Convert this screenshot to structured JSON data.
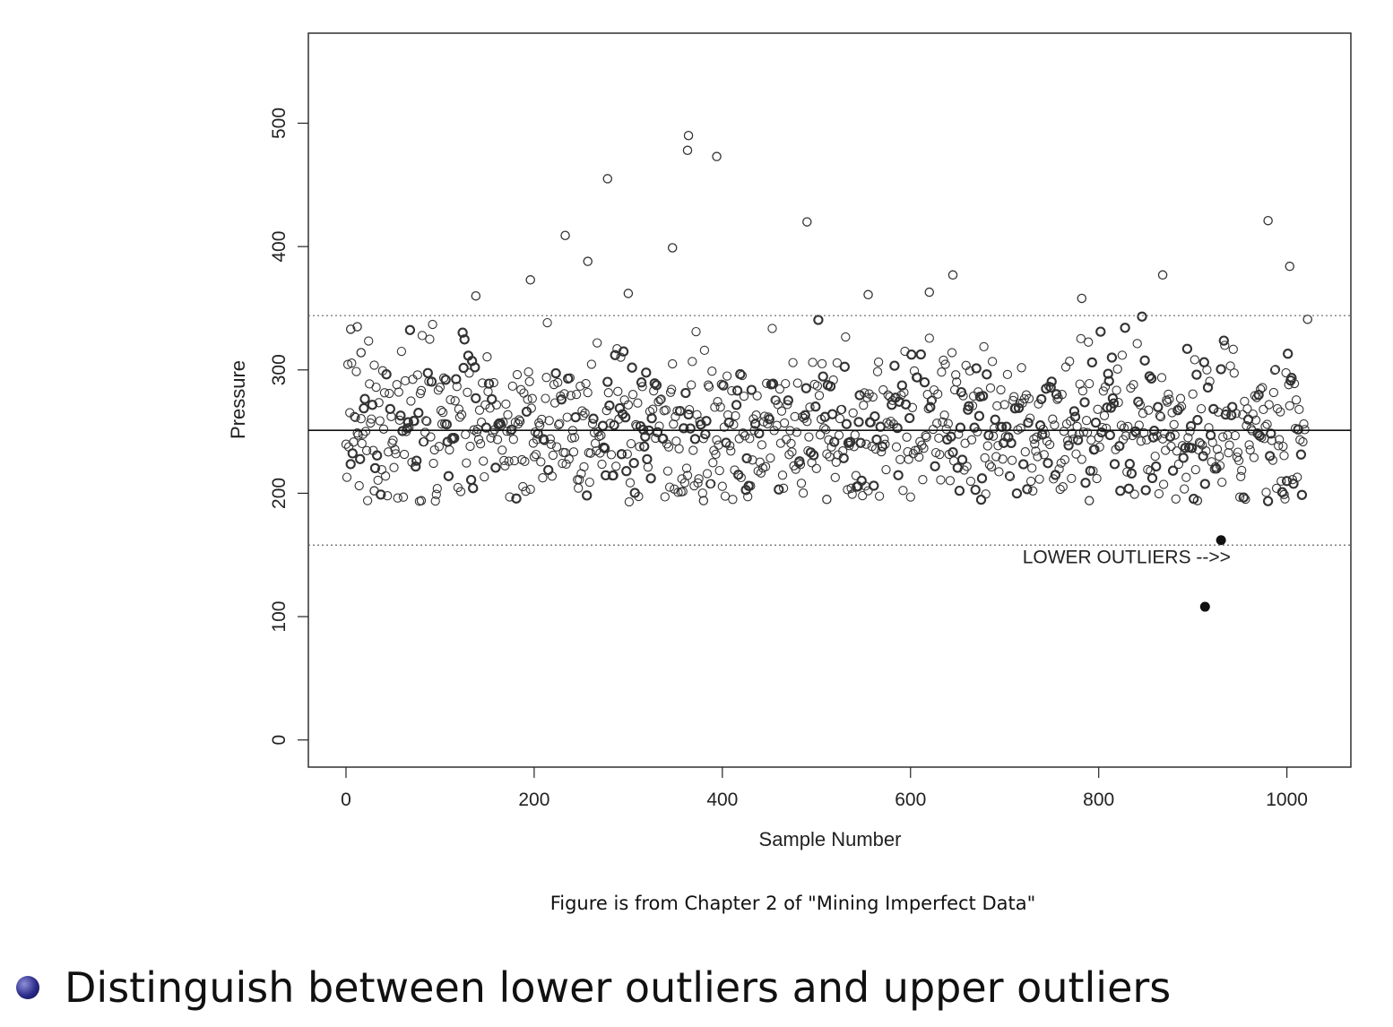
{
  "chart_data": {
    "type": "scatter",
    "xlabel": "Sample Number",
    "ylabel": "Pressure",
    "xlim": [
      -40,
      1068
    ],
    "ylim": [
      -22,
      573
    ],
    "x_ticks": [
      0,
      200,
      400,
      600,
      800,
      1000
    ],
    "y_ticks": [
      0,
      100,
      200,
      300,
      400,
      500
    ],
    "grid": false,
    "reference_lines": [
      {
        "style": "solid",
        "y": 251
      },
      {
        "style": "dotted",
        "y": 344
      },
      {
        "style": "dotted",
        "y": 158
      }
    ],
    "annotation": {
      "text": "LOWER OUTLIERS -->>",
      "x": 700,
      "y": 139
    },
    "outliers_filled": [
      {
        "x": 913,
        "y": 108
      },
      {
        "x": 930,
        "y": 162
      }
    ],
    "series_points_count": 1020,
    "series_mean": 251,
    "series_sd": 33,
    "highlighted_points": [
      {
        "x": 5,
        "y": 333
      },
      {
        "x": 12,
        "y": 335
      },
      {
        "x": 16,
        "y": 314
      },
      {
        "x": 138,
        "y": 360
      },
      {
        "x": 196,
        "y": 373
      },
      {
        "x": 233,
        "y": 409
      },
      {
        "x": 257,
        "y": 388
      },
      {
        "x": 278,
        "y": 455
      },
      {
        "x": 300,
        "y": 362
      },
      {
        "x": 347,
        "y": 399
      },
      {
        "x": 364,
        "y": 490
      },
      {
        "x": 363,
        "y": 478
      },
      {
        "x": 394,
        "y": 473
      },
      {
        "x": 490,
        "y": 420
      },
      {
        "x": 555,
        "y": 361
      },
      {
        "x": 620,
        "y": 363
      },
      {
        "x": 645,
        "y": 377
      },
      {
        "x": 782,
        "y": 358
      },
      {
        "x": 868,
        "y": 377
      },
      {
        "x": 980,
        "y": 421
      },
      {
        "x": 1003,
        "y": 384
      },
      {
        "x": 1022,
        "y": 341
      },
      {
        "x": 80,
        "y": 194
      },
      {
        "x": 30,
        "y": 202
      },
      {
        "x": 380,
        "y": 194
      },
      {
        "x": 511,
        "y": 195
      },
      {
        "x": 790,
        "y": 194
      },
      {
        "x": 905,
        "y": 194
      },
      {
        "x": 997,
        "y": 199
      }
    ]
  },
  "caption": "Figure is from Chapter 2 of \"Mining Imperfect Data\"",
  "bullet": {
    "text": "Distinguish between lower outliers and upper outliers",
    "color": "#2b2b8a"
  }
}
